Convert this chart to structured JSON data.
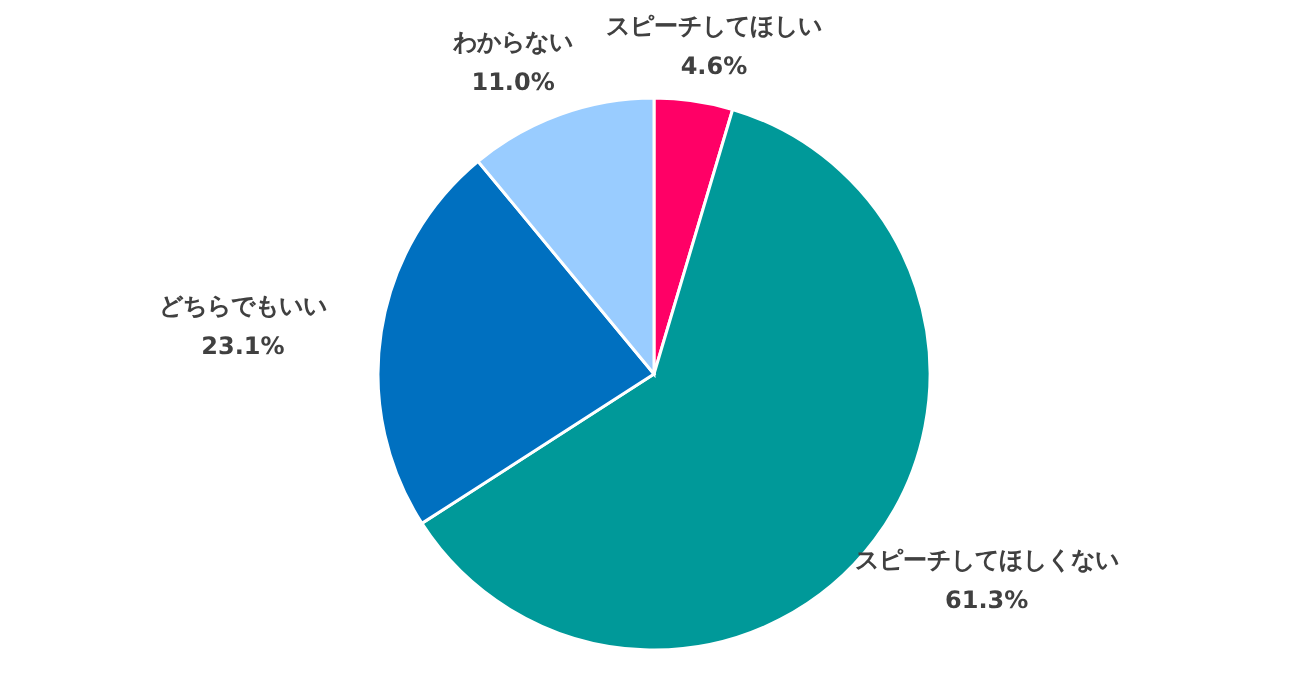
{
  "chart_data": {
    "type": "pie",
    "categories": [
      "スピーチしてほしい",
      "スピーチしてほしくない",
      "どちらでもいい",
      "わからない"
    ],
    "values": [
      4.6,
      61.3,
      23.1,
      11.0
    ],
    "colors": [
      "#ff0066",
      "#009999",
      "#0070c0",
      "#99ccff"
    ],
    "value_labels": [
      "4.6%",
      "61.3%",
      "23.1%",
      "11.0%"
    ]
  }
}
